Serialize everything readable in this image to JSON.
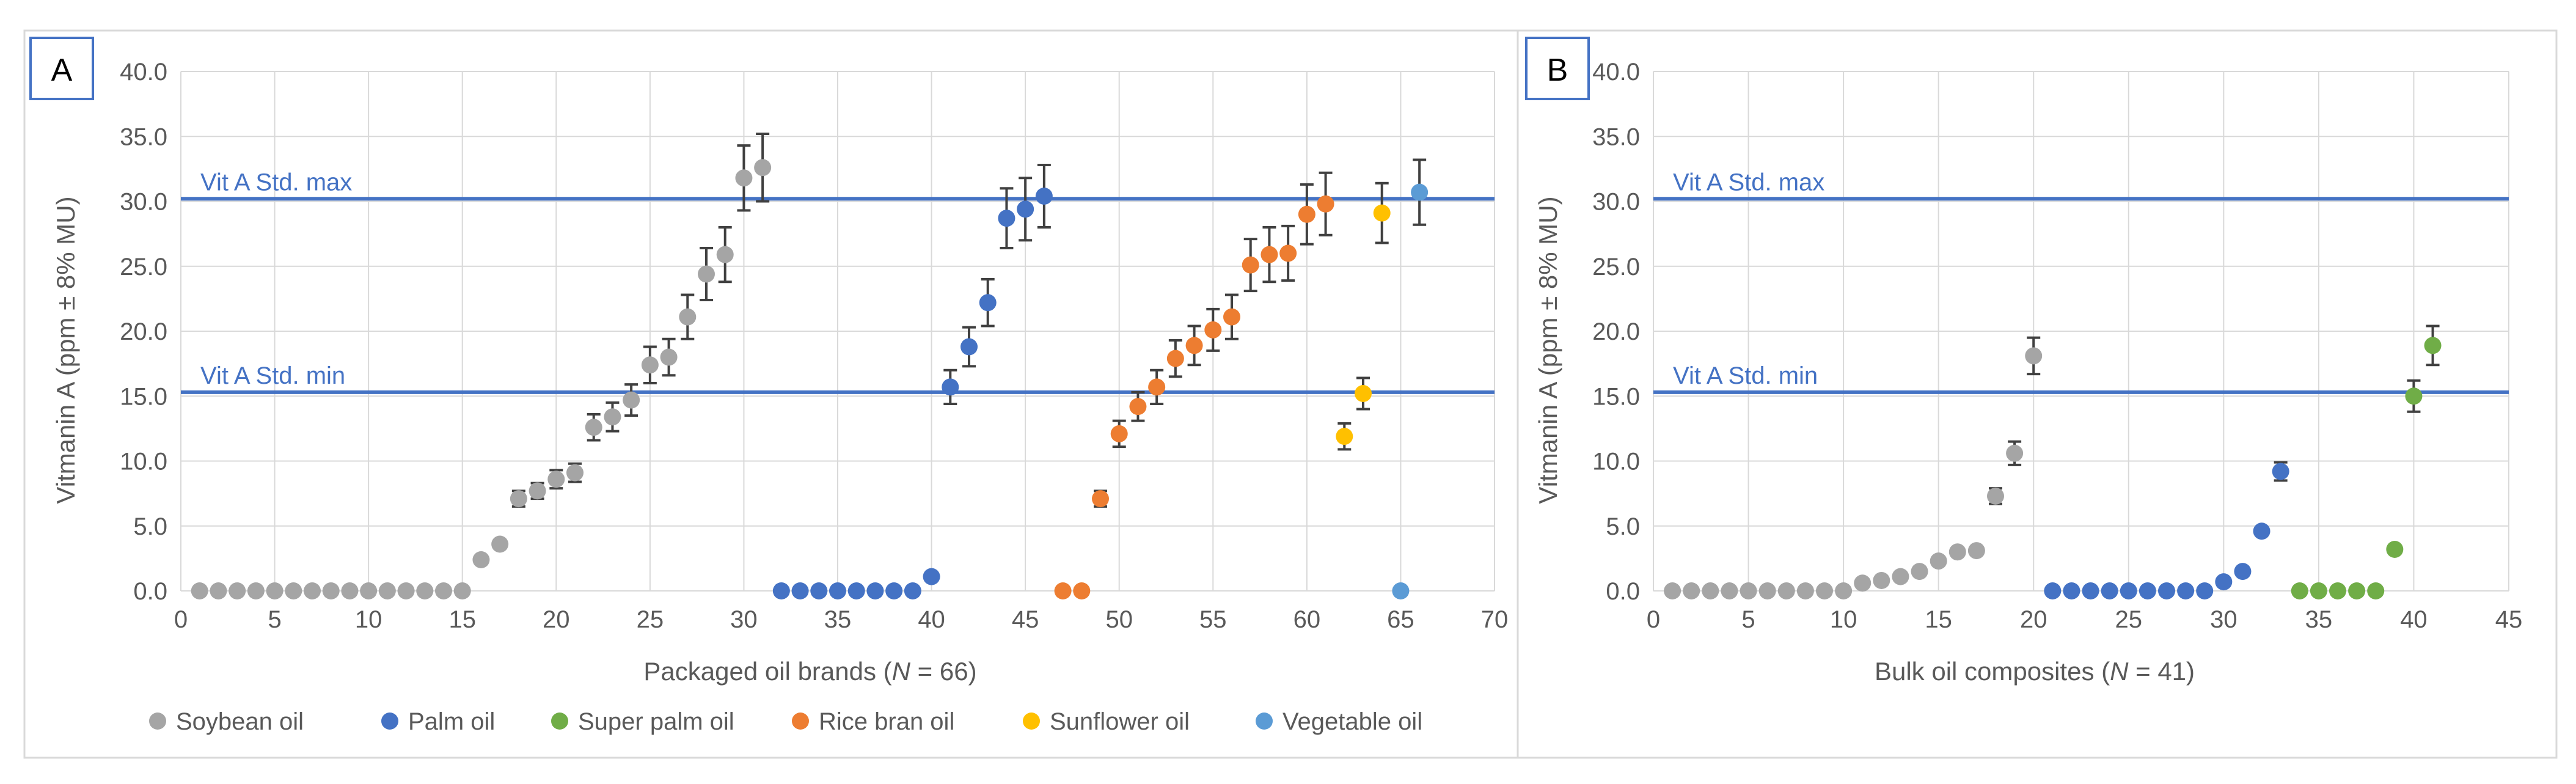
{
  "colors": {
    "soybean": "#a5a5a5",
    "palm": "#4472c4",
    "super_palm": "#70ad47",
    "rice_bran": "#ed7d31",
    "sunflower": "#ffc000",
    "vegetable": "#5b9bd5",
    "std_line": "#4472c4",
    "grid": "#d9d9d9",
    "axis_text": "#595959",
    "error_bar": "#404040"
  },
  "legend": [
    {
      "label": "Soybean oil",
      "color_key": "soybean"
    },
    {
      "label": "Palm oil",
      "color_key": "palm"
    },
    {
      "label": "Super palm oil",
      "color_key": "super_palm"
    },
    {
      "label": "Rice bran oil",
      "color_key": "rice_bran"
    },
    {
      "label": "Sunflower oil",
      "color_key": "sunflower"
    },
    {
      "label": "Vegetable oil",
      "color_key": "vegetable"
    }
  ],
  "chart_data": [
    {
      "panel_label": "A",
      "type": "scatter",
      "xlabel_prefix": "Packaged oil brands (",
      "xlabel_italic": "N",
      "xlabel_suffix": " = 66)",
      "ylabel": "Vitmanin A (ppm ± 8% MU)",
      "xlim": [
        0,
        70
      ],
      "ylim": [
        0,
        40
      ],
      "xticks": [
        "0",
        "5",
        "10",
        "15",
        "20",
        "25",
        "30",
        "35",
        "40",
        "45",
        "50",
        "55",
        "60",
        "65",
        "70"
      ],
      "yticks": [
        "0.0",
        "5.0",
        "10.0",
        "15.0",
        "20.0",
        "25.0",
        "30.0",
        "35.0",
        "40.0"
      ],
      "reference_lines": [
        {
          "label": "Vit A Std. max",
          "value": 30.2
        },
        {
          "label": "Vit A Std. min",
          "value": 15.3
        }
      ],
      "series": [
        {
          "name": "Soybean oil",
          "color_key": "soybean",
          "x": [
            1,
            2,
            3,
            4,
            5,
            6,
            7,
            8,
            9,
            10,
            11,
            12,
            13,
            14,
            15,
            16,
            17,
            18,
            19,
            20,
            21,
            22,
            23,
            24,
            25,
            26,
            27,
            28,
            29,
            30,
            31
          ],
          "y": [
            0,
            0,
            0,
            0,
            0,
            0,
            0,
            0,
            0,
            0,
            0,
            0,
            0,
            0,
            0,
            2.4,
            3.6,
            7.1,
            7.7,
            8.6,
            9.1,
            12.6,
            13.4,
            14.7,
            17.4,
            18.0,
            21.1,
            24.4,
            25.9,
            31.8,
            32.6
          ],
          "error": [
            0,
            0,
            0,
            0,
            0,
            0,
            0,
            0,
            0,
            0,
            0,
            0,
            0,
            0,
            0,
            0,
            0,
            0.6,
            0.6,
            0.7,
            0.7,
            1.0,
            1.1,
            1.2,
            1.4,
            1.4,
            1.7,
            2.0,
            2.1,
            2.5,
            2.6
          ]
        },
        {
          "name": "Palm oil",
          "color_key": "palm",
          "x": [
            32,
            33,
            34,
            35,
            36,
            37,
            38,
            39,
            40,
            41,
            42,
            43,
            44,
            45,
            46
          ],
          "y": [
            0,
            0,
            0,
            0,
            0,
            0,
            0,
            0,
            1.1,
            15.7,
            18.8,
            22.2,
            28.7,
            29.4,
            30.4
          ],
          "error": [
            0,
            0,
            0,
            0,
            0,
            0,
            0,
            0,
            0,
            1.3,
            1.5,
            1.8,
            2.3,
            2.4,
            2.4
          ]
        },
        {
          "name": "Rice bran oil",
          "color_key": "rice_bran",
          "x": [
            47,
            48,
            49,
            50,
            51,
            52,
            53,
            54,
            55,
            56,
            57,
            58,
            59,
            60,
            61
          ],
          "y": [
            0,
            0,
            7.1,
            12.1,
            14.2,
            15.7,
            17.9,
            18.9,
            20.1,
            21.1,
            25.1,
            25.9,
            26.0,
            29.0,
            29.8
          ],
          "error": [
            0,
            0,
            0.6,
            1.0,
            1.1,
            1.3,
            1.4,
            1.5,
            1.6,
            1.7,
            2.0,
            2.1,
            2.1,
            2.3,
            2.4
          ]
        },
        {
          "name": "Sunflower oil",
          "color_key": "sunflower",
          "x": [
            62,
            63,
            64
          ],
          "y": [
            11.9,
            15.2,
            29.1
          ],
          "error": [
            1.0,
            1.2,
            2.3
          ]
        },
        {
          "name": "Vegetable oil",
          "color_key": "vegetable",
          "x": [
            65,
            66
          ],
          "y": [
            0,
            30.7
          ],
          "error": [
            0,
            2.5
          ]
        }
      ]
    },
    {
      "panel_label": "B",
      "type": "scatter",
      "xlabel_prefix": "Bulk oil composites (",
      "xlabel_italic": "N",
      "xlabel_suffix": " = 41)",
      "ylabel": "Vitmanin A (ppm ± 8% MU)",
      "xlim": [
        0,
        45
      ],
      "ylim": [
        0,
        40
      ],
      "xticks": [
        "0",
        "5",
        "10",
        "15",
        "20",
        "25",
        "30",
        "35",
        "40",
        "45"
      ],
      "yticks": [
        "0.0",
        "5.0",
        "10.0",
        "15.0",
        "20.0",
        "25.0",
        "30.0",
        "35.0",
        "40.0"
      ],
      "reference_lines": [
        {
          "label": "Vit A Std. max",
          "value": 30.2
        },
        {
          "label": "Vit A Std. min",
          "value": 15.3
        }
      ],
      "series": [
        {
          "name": "Soybean oil",
          "color_key": "soybean",
          "x": [
            1,
            2,
            3,
            4,
            5,
            6,
            7,
            8,
            9,
            10,
            11,
            12,
            13,
            14,
            15,
            16,
            17,
            18,
            19,
            20
          ],
          "y": [
            0,
            0,
            0,
            0,
            0,
            0,
            0,
            0,
            0,
            0,
            0.6,
            0.8,
            1.1,
            1.5,
            2.3,
            3.0,
            3.1,
            7.3,
            10.6,
            18.1
          ],
          "error": [
            0,
            0,
            0,
            0,
            0,
            0,
            0,
            0,
            0,
            0,
            0,
            0,
            0,
            0,
            0,
            0,
            0,
            0.6,
            0.9,
            1.4
          ]
        },
        {
          "name": "Palm oil",
          "color_key": "palm",
          "x": [
            21,
            22,
            23,
            24,
            25,
            26,
            27,
            28,
            29,
            30,
            31,
            32,
            33
          ],
          "y": [
            0,
            0,
            0,
            0,
            0,
            0,
            0,
            0,
            0,
            0.7,
            1.5,
            4.6,
            9.2
          ],
          "error": [
            0,
            0,
            0,
            0,
            0,
            0,
            0,
            0,
            0,
            0,
            0,
            0,
            0.7
          ]
        },
        {
          "name": "Super palm oil",
          "color_key": "super_palm",
          "x": [
            34,
            35,
            36,
            37,
            38,
            39,
            40,
            41
          ],
          "y": [
            0,
            0,
            0,
            0,
            0,
            3.2,
            15.0,
            18.9
          ],
          "error": [
            0,
            0,
            0,
            0,
            0,
            0,
            1.2,
            1.5
          ]
        }
      ]
    }
  ]
}
